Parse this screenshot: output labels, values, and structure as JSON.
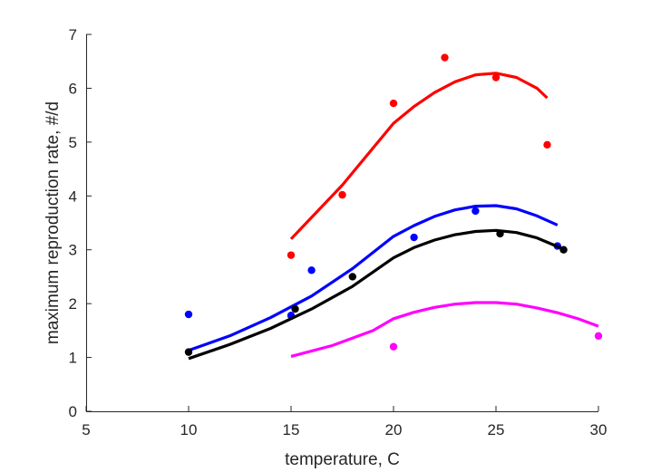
{
  "chart_data": {
    "type": "scatter",
    "title": "",
    "xlabel": "temperature, C",
    "ylabel": "maximum reproduction rate, #/d",
    "xlim": [
      5,
      30
    ],
    "ylim": [
      0,
      7
    ],
    "xticks": [
      5,
      10,
      15,
      20,
      25,
      30
    ],
    "yticks": [
      0,
      1,
      2,
      3,
      4,
      5,
      6,
      7
    ],
    "grid": false,
    "series": [
      {
        "color": "#ff0000",
        "points": [
          [
            15,
            2.9
          ],
          [
            17.5,
            4.02
          ],
          [
            20,
            5.72
          ],
          [
            22.5,
            6.57
          ],
          [
            25,
            6.2
          ],
          [
            27.5,
            4.95
          ]
        ],
        "fit": [
          [
            15,
            3.2
          ],
          [
            17.5,
            4.2
          ],
          [
            20,
            5.35
          ],
          [
            21,
            5.66
          ],
          [
            22,
            5.92
          ],
          [
            23,
            6.12
          ],
          [
            24,
            6.25
          ],
          [
            25,
            6.28
          ],
          [
            26,
            6.2
          ],
          [
            27,
            6.0
          ],
          [
            27.5,
            5.82
          ]
        ]
      },
      {
        "color": "#0000ff",
        "points": [
          [
            10,
            1.8
          ],
          [
            15,
            1.78
          ],
          [
            16,
            2.62
          ],
          [
            21,
            3.23
          ],
          [
            24,
            3.72
          ],
          [
            28,
            3.07
          ]
        ],
        "fit": [
          [
            10,
            1.13
          ],
          [
            12,
            1.4
          ],
          [
            14,
            1.74
          ],
          [
            16,
            2.14
          ],
          [
            18,
            2.65
          ],
          [
            20,
            3.25
          ],
          [
            21,
            3.45
          ],
          [
            22,
            3.62
          ],
          [
            23,
            3.74
          ],
          [
            24,
            3.81
          ],
          [
            25,
            3.82
          ],
          [
            26,
            3.76
          ],
          [
            27,
            3.63
          ],
          [
            28,
            3.46
          ]
        ]
      },
      {
        "color": "#000000",
        "points": [
          [
            10,
            1.1
          ],
          [
            15.2,
            1.9
          ],
          [
            18,
            2.5
          ],
          [
            25.2,
            3.3
          ],
          [
            28.3,
            3.0
          ]
        ],
        "fit": [
          [
            10,
            0.98
          ],
          [
            12,
            1.24
          ],
          [
            14,
            1.54
          ],
          [
            16,
            1.9
          ],
          [
            18,
            2.32
          ],
          [
            20,
            2.85
          ],
          [
            21,
            3.04
          ],
          [
            22,
            3.18
          ],
          [
            23,
            3.28
          ],
          [
            24,
            3.34
          ],
          [
            25,
            3.36
          ],
          [
            26,
            3.32
          ],
          [
            27,
            3.22
          ],
          [
            28,
            3.06
          ],
          [
            28.3,
            3.0
          ]
        ]
      },
      {
        "color": "#ff00ff",
        "points": [
          [
            20,
            1.2
          ],
          [
            30,
            1.4
          ]
        ],
        "fit": [
          [
            15,
            1.02
          ],
          [
            17,
            1.22
          ],
          [
            19,
            1.5
          ],
          [
            20,
            1.72
          ],
          [
            21,
            1.84
          ],
          [
            22,
            1.93
          ],
          [
            23,
            1.99
          ],
          [
            24,
            2.02
          ],
          [
            25,
            2.02
          ],
          [
            26,
            1.99
          ],
          [
            27,
            1.92
          ],
          [
            28,
            1.83
          ],
          [
            29,
            1.72
          ],
          [
            30,
            1.58
          ]
        ]
      }
    ]
  }
}
